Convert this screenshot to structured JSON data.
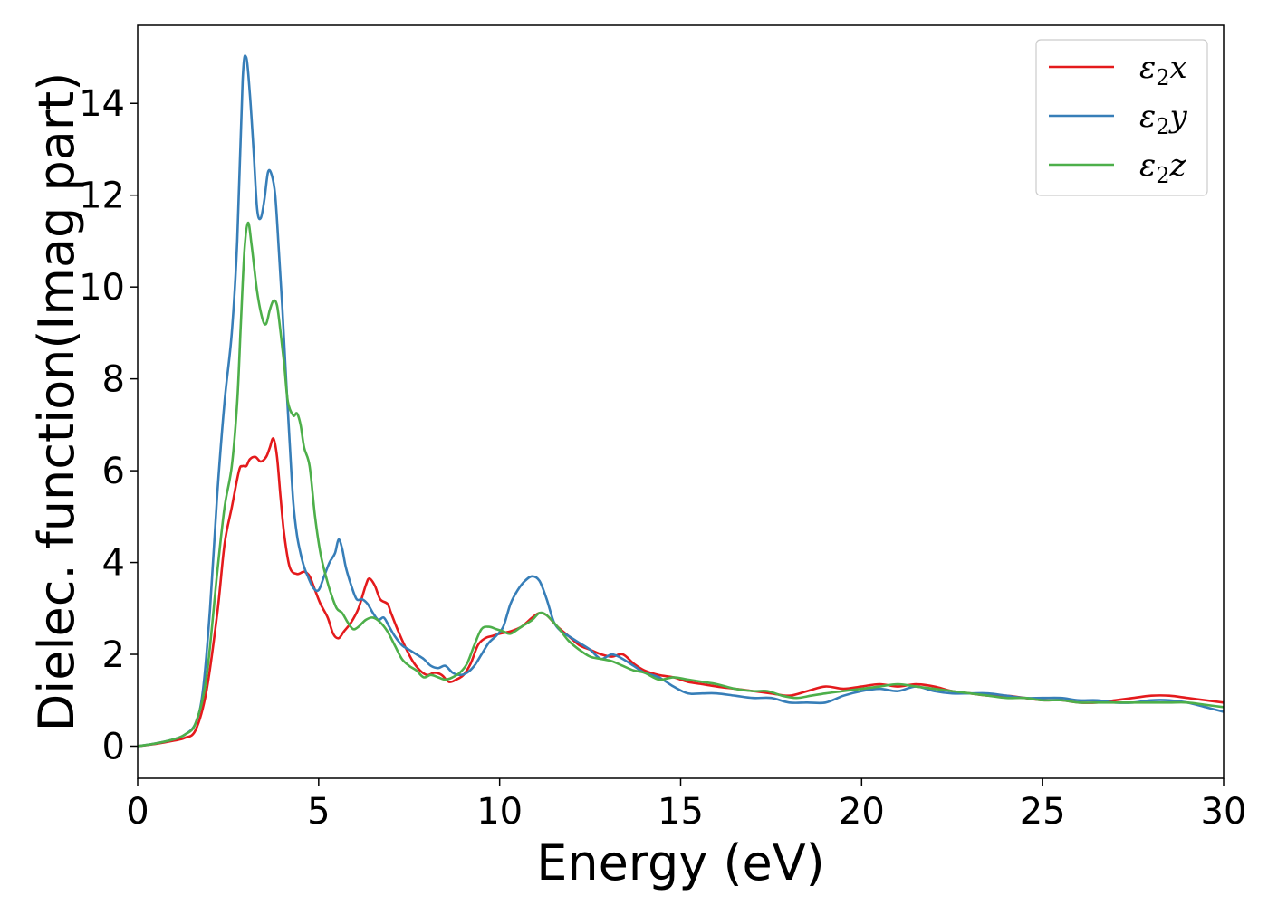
{
  "chart_data": {
    "type": "line",
    "title": "",
    "xlabel": "Energy (eV)",
    "ylabel": "Dielec. function(Imag part)",
    "xlim": [
      0,
      30
    ],
    "ylim": [
      -0.7,
      15.7
    ],
    "xticks": [
      0,
      5,
      10,
      15,
      20,
      25,
      30
    ],
    "yticks": [
      0,
      2,
      4,
      6,
      8,
      10,
      12,
      14
    ],
    "grid": false,
    "legend_position": "top-right",
    "series": [
      {
        "name": "ε₂x",
        "legend_base": "ε",
        "legend_sub": "2",
        "legend_suffix": "x",
        "color": "#e41a1c",
        "x": [
          0,
          0.5,
          1,
          1.3,
          1.6,
          1.9,
          2.2,
          2.4,
          2.6,
          2.8,
          2.9,
          3.0,
          3.1,
          3.25,
          3.4,
          3.55,
          3.65,
          3.75,
          3.85,
          3.95,
          4.05,
          4.2,
          4.4,
          4.6,
          4.75,
          4.9,
          5.05,
          5.25,
          5.4,
          5.55,
          5.7,
          5.9,
          6.1,
          6.3,
          6.4,
          6.55,
          6.7,
          6.9,
          7.0,
          7.2,
          7.4,
          7.6,
          7.8,
          8.0,
          8.2,
          8.4,
          8.6,
          8.8,
          9.0,
          9.2,
          9.4,
          9.6,
          9.8,
          10.0,
          10.3,
          10.6,
          10.9,
          11.1,
          11.3,
          11.6,
          11.9,
          12.2,
          12.5,
          12.8,
          13.1,
          13.4,
          13.7,
          14.0,
          14.4,
          14.8,
          15.2,
          15.6,
          16.0,
          16.5,
          17.0,
          17.5,
          18.0,
          18.5,
          19.0,
          19.5,
          20.0,
          20.5,
          21.0,
          21.5,
          22.0,
          22.5,
          23.0,
          23.5,
          24.0,
          24.5,
          25.0,
          25.5,
          26.0,
          26.5,
          27.0,
          27.5,
          28.0,
          28.5,
          29.0,
          29.5,
          30.0
        ],
        "y": [
          0,
          0.05,
          0.12,
          0.18,
          0.35,
          1.2,
          2.9,
          4.4,
          5.2,
          6.0,
          6.1,
          6.1,
          6.25,
          6.3,
          6.2,
          6.3,
          6.5,
          6.7,
          6.3,
          5.4,
          4.6,
          3.9,
          3.75,
          3.8,
          3.7,
          3.4,
          3.1,
          2.8,
          2.45,
          2.35,
          2.5,
          2.7,
          3.0,
          3.5,
          3.65,
          3.5,
          3.2,
          3.1,
          2.9,
          2.5,
          2.15,
          1.85,
          1.65,
          1.55,
          1.6,
          1.55,
          1.4,
          1.45,
          1.55,
          1.8,
          2.2,
          2.35,
          2.4,
          2.45,
          2.5,
          2.6,
          2.8,
          2.9,
          2.85,
          2.6,
          2.4,
          2.2,
          2.1,
          2.0,
          1.95,
          2.0,
          1.8,
          1.65,
          1.55,
          1.5,
          1.4,
          1.35,
          1.3,
          1.25,
          1.2,
          1.15,
          1.1,
          1.2,
          1.3,
          1.25,
          1.3,
          1.35,
          1.3,
          1.35,
          1.3,
          1.2,
          1.15,
          1.1,
          1.1,
          1.05,
          1.0,
          1.0,
          0.95,
          0.95,
          1.0,
          1.05,
          1.1,
          1.1,
          1.05,
          1.0,
          0.95
        ]
      },
      {
        "name": "ε₂y",
        "legend_base": "ε",
        "legend_sub": "2",
        "legend_suffix": "y",
        "color": "#377eb8",
        "x": [
          0,
          0.5,
          1,
          1.3,
          1.6,
          1.8,
          2.0,
          2.2,
          2.4,
          2.6,
          2.75,
          2.9,
          3.0,
          3.1,
          3.2,
          3.3,
          3.4,
          3.5,
          3.6,
          3.7,
          3.8,
          3.9,
          4.0,
          4.1,
          4.2,
          4.3,
          4.4,
          4.5,
          4.6,
          4.7,
          4.85,
          5.0,
          5.15,
          5.3,
          5.45,
          5.55,
          5.65,
          5.75,
          5.9,
          6.05,
          6.2,
          6.35,
          6.5,
          6.65,
          6.8,
          6.95,
          7.1,
          7.3,
          7.5,
          7.7,
          7.9,
          8.1,
          8.3,
          8.5,
          8.7,
          8.9,
          9.1,
          9.3,
          9.5,
          9.7,
          9.9,
          10.1,
          10.3,
          10.5,
          10.7,
          10.9,
          11.1,
          11.3,
          11.5,
          11.7,
          11.9,
          12.2,
          12.5,
          12.8,
          13.1,
          13.4,
          13.7,
          14.0,
          14.4,
          14.8,
          15.2,
          15.6,
          16.0,
          16.5,
          17.0,
          17.5,
          18.0,
          18.5,
          19.0,
          19.5,
          20.0,
          20.5,
          21.0,
          21.5,
          22.0,
          22.5,
          23.0,
          23.5,
          24.0,
          24.5,
          25.0,
          25.5,
          26.0,
          26.5,
          27.0,
          27.5,
          28.0,
          28.5,
          29.0,
          29.5,
          30.0
        ],
        "y": [
          0,
          0.06,
          0.15,
          0.25,
          0.5,
          1.2,
          3.0,
          5.5,
          7.5,
          9.0,
          11.0,
          14.5,
          15.0,
          14.2,
          13.0,
          11.7,
          11.5,
          11.9,
          12.5,
          12.45,
          12.0,
          10.8,
          9.5,
          8.0,
          6.6,
          5.3,
          4.6,
          4.2,
          3.9,
          3.7,
          3.45,
          3.4,
          3.7,
          4.0,
          4.2,
          4.5,
          4.3,
          3.9,
          3.5,
          3.2,
          3.2,
          3.1,
          2.9,
          2.75,
          2.8,
          2.6,
          2.4,
          2.2,
          2.1,
          2.0,
          1.9,
          1.75,
          1.7,
          1.75,
          1.6,
          1.55,
          1.6,
          1.75,
          2.0,
          2.25,
          2.4,
          2.6,
          3.1,
          3.4,
          3.6,
          3.7,
          3.6,
          3.2,
          2.7,
          2.5,
          2.4,
          2.25,
          2.1,
          1.9,
          2.0,
          1.9,
          1.75,
          1.6,
          1.5,
          1.3,
          1.15,
          1.15,
          1.15,
          1.1,
          1.05,
          1.05,
          0.95,
          0.95,
          0.95,
          1.1,
          1.2,
          1.25,
          1.2,
          1.3,
          1.2,
          1.15,
          1.15,
          1.15,
          1.1,
          1.05,
          1.05,
          1.05,
          1.0,
          1.0,
          0.95,
          0.95,
          1.0,
          1.0,
          0.95,
          0.85,
          0.75
        ]
      },
      {
        "name": "ε₂z",
        "legend_base": "ε",
        "legend_sub": "2",
        "legend_suffix": "z",
        "color": "#4daf4a",
        "x": [
          0,
          0.5,
          1,
          1.3,
          1.6,
          1.9,
          2.2,
          2.4,
          2.6,
          2.75,
          2.85,
          2.95,
          3.05,
          3.15,
          3.3,
          3.45,
          3.55,
          3.65,
          3.75,
          3.85,
          3.95,
          4.05,
          4.15,
          4.3,
          4.4,
          4.5,
          4.6,
          4.75,
          4.9,
          5.05,
          5.2,
          5.35,
          5.5,
          5.65,
          5.8,
          5.95,
          6.1,
          6.3,
          6.5,
          6.7,
          6.9,
          7.1,
          7.3,
          7.5,
          7.7,
          7.9,
          8.1,
          8.3,
          8.5,
          8.7,
          8.9,
          9.1,
          9.3,
          9.5,
          9.7,
          9.9,
          10.1,
          10.3,
          10.6,
          10.9,
          11.1,
          11.3,
          11.6,
          11.9,
          12.2,
          12.5,
          12.8,
          13.1,
          13.4,
          13.7,
          14.0,
          14.4,
          14.8,
          15.2,
          15.6,
          16.0,
          16.5,
          17.0,
          17.4,
          17.8,
          18.2,
          18.6,
          19.0,
          19.5,
          20.0,
          20.5,
          21.0,
          21.5,
          22.0,
          22.5,
          23.0,
          23.5,
          24.0,
          24.5,
          25.0,
          25.5,
          26.0,
          26.5,
          27.0,
          27.5,
          28.0,
          28.5,
          29.0,
          29.5,
          30.0
        ],
        "y": [
          0,
          0.06,
          0.15,
          0.25,
          0.5,
          1.5,
          3.8,
          5.2,
          6.1,
          7.5,
          9.2,
          10.8,
          11.4,
          10.9,
          9.9,
          9.3,
          9.2,
          9.5,
          9.7,
          9.6,
          9.0,
          8.3,
          7.5,
          7.2,
          7.25,
          7.0,
          6.5,
          6.1,
          5.0,
          4.2,
          3.7,
          3.3,
          3.0,
          2.9,
          2.7,
          2.55,
          2.6,
          2.75,
          2.8,
          2.7,
          2.5,
          2.2,
          1.9,
          1.75,
          1.65,
          1.5,
          1.55,
          1.5,
          1.45,
          1.5,
          1.6,
          1.8,
          2.2,
          2.55,
          2.6,
          2.55,
          2.5,
          2.45,
          2.6,
          2.75,
          2.9,
          2.85,
          2.6,
          2.3,
          2.1,
          1.95,
          1.9,
          1.85,
          1.75,
          1.65,
          1.6,
          1.45,
          1.5,
          1.45,
          1.4,
          1.35,
          1.25,
          1.2,
          1.2,
          1.1,
          1.05,
          1.1,
          1.15,
          1.2,
          1.25,
          1.3,
          1.35,
          1.3,
          1.25,
          1.2,
          1.15,
          1.1,
          1.05,
          1.05,
          1.0,
          1.0,
          0.95,
          0.95,
          0.95,
          0.95,
          0.95,
          0.95,
          0.95,
          0.9,
          0.85
        ]
      }
    ]
  }
}
